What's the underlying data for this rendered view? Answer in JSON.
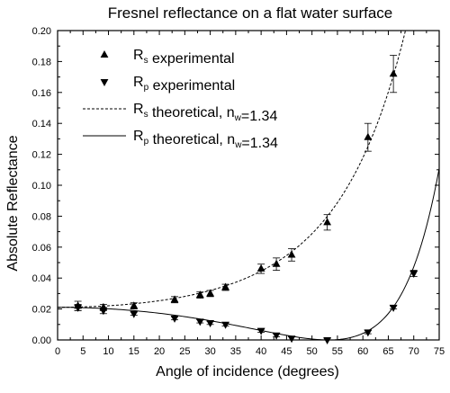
{
  "chart_data": {
    "type": "scatter",
    "title": "Fresnel reflectance on a flat water surface",
    "xlabel": "Angle of incidence (degrees)",
    "ylabel": "Absolute Reflectance",
    "xlim": [
      0,
      75
    ],
    "ylim": [
      0,
      0.2
    ],
    "x_ticks": [
      "0",
      "5",
      "10",
      "15",
      "20",
      "25",
      "30",
      "35",
      "40",
      "45",
      "50",
      "55",
      "60",
      "65",
      "70",
      "75"
    ],
    "y_ticks": [
      "0.00",
      "0.02",
      "0.04",
      "0.06",
      "0.08",
      "0.10",
      "0.12",
      "0.14",
      "0.16",
      "0.18",
      "0.20"
    ],
    "grid": false,
    "legend_position": "top-left",
    "legend": [
      {
        "main": "R",
        "sub": "s",
        "rest": " experimental",
        "style": "triangle-up"
      },
      {
        "main": "R",
        "sub": "p",
        "rest": " experimental",
        "style": "triangle-down"
      },
      {
        "main": "R",
        "sub": "s",
        "rest": " theoretical, n",
        "sub2": "w",
        "rest2": "=1.34",
        "style": "dashed"
      },
      {
        "main": "R",
        "sub": "p",
        "rest": " theoretical, n",
        "sub2": "w",
        "rest2": "=1.34",
        "style": "solid"
      }
    ],
    "series": [
      {
        "style": "triangle-up",
        "x": [
          4,
          9,
          15,
          23,
          28,
          30,
          33,
          40,
          43,
          46,
          53,
          61,
          66
        ],
        "y": [
          0.022,
          0.021,
          0.022,
          0.026,
          0.029,
          0.03,
          0.034,
          0.046,
          0.049,
          0.055,
          0.076,
          0.131,
          0.172
        ],
        "err": [
          0.003,
          0.002,
          0.002,
          0.002,
          0.002,
          0.002,
          0.002,
          0.003,
          0.004,
          0.004,
          0.005,
          0.009,
          0.012
        ]
      },
      {
        "style": "triangle-down",
        "x": [
          4,
          9,
          15,
          23,
          28,
          30,
          33,
          40,
          43,
          46,
          53,
          61,
          66,
          70
        ],
        "y": [
          0.021,
          0.019,
          0.017,
          0.014,
          0.012,
          0.011,
          0.01,
          0.006,
          0.003,
          0.001,
          0.0,
          0.005,
          0.021,
          0.043
        ],
        "err": [
          0.002,
          0.002,
          0.001,
          0.001,
          0.001,
          0.001,
          0.001,
          0.001,
          0.001,
          0.001,
          0.001,
          0.001,
          0.001,
          0.002
        ]
      }
    ],
    "theory_index": 1.34
  }
}
